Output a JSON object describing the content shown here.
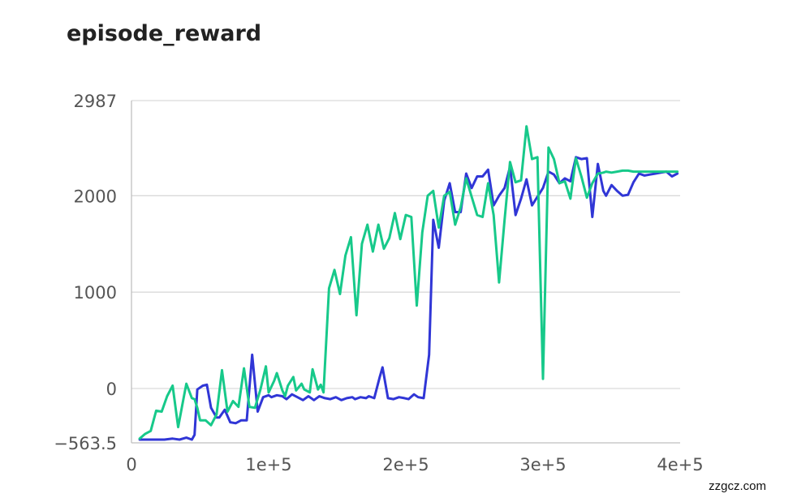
{
  "title": "episode_reward",
  "watermark": "zzgcz.com",
  "chart_data": {
    "type": "line",
    "xlabel": "",
    "ylabel": "",
    "xlim": [
      0,
      400000
    ],
    "ylim": [
      -563.5,
      2987
    ],
    "x_ticks": [
      0,
      100000,
      200000,
      300000,
      400000
    ],
    "x_tick_labels": [
      "0",
      "1e+5",
      "2e+5",
      "3e+5",
      "4e+5"
    ],
    "y_ticks": [
      -563.5,
      0,
      1000,
      2000,
      2987
    ],
    "y_tick_labels": [
      "−563.5",
      "0",
      "1000",
      "2000",
      "2987"
    ],
    "grid": "horizontal",
    "colors": {
      "blue": "#3036d6",
      "green": "#17c98a",
      "grid": "#d9d9d9",
      "axis": "#bfbfbf",
      "tick_text": "#555555"
    },
    "series": [
      {
        "color": "#3036d6",
        "x": [
          6000,
          12000,
          18000,
          24000,
          30000,
          35000,
          40000,
          44000,
          46000,
          48000,
          52000,
          55000,
          58000,
          62000,
          64000,
          68000,
          72000,
          76000,
          80000,
          84000,
          88000,
          92000,
          96000,
          100000,
          102000,
          106000,
          110000,
          113000,
          117000,
          121000,
          125000,
          129000,
          133000,
          137000,
          141000,
          145000,
          149000,
          153000,
          157000,
          161000,
          163000,
          167000,
          171000,
          173000,
          177000,
          181000,
          183000,
          187000,
          191000,
          195000,
          199000,
          202000,
          206000,
          209000,
          213000,
          217000,
          220000,
          224000,
          228000,
          232000,
          236000,
          240000,
          244000,
          248000,
          252000,
          256000,
          260000,
          264000,
          268000,
          272000,
          276000,
          280000,
          284000,
          288000,
          292000,
          296000,
          300000,
          304000,
          308000,
          312000,
          316000,
          320000,
          324000,
          328000,
          332000,
          336000,
          340000,
          344000,
          346000,
          350000,
          354000,
          358000,
          362000,
          366000,
          370000,
          374000,
          378000,
          382000,
          386000,
          390000,
          394000,
          398000
        ],
        "y": [
          -530,
          -530,
          -530,
          -530,
          -520,
          -530,
          -510,
          -530,
          -480,
          -10,
          30,
          40,
          -200,
          -300,
          -300,
          -220,
          -350,
          -360,
          -330,
          -330,
          350,
          -240,
          -90,
          -70,
          -90,
          -70,
          -80,
          -110,
          -60,
          -90,
          -120,
          -80,
          -120,
          -80,
          -100,
          -110,
          -90,
          -120,
          -100,
          -90,
          -110,
          -90,
          -100,
          -80,
          -100,
          120,
          220,
          -100,
          -110,
          -90,
          -100,
          -110,
          -60,
          -90,
          -100,
          350,
          1750,
          1460,
          1950,
          2130,
          1830,
          1830,
          2230,
          2080,
          2200,
          2200,
          2270,
          1900,
          2000,
          2080,
          2300,
          1800,
          1970,
          2170,
          1900,
          1990,
          2080,
          2250,
          2220,
          2130,
          2180,
          2150,
          2400,
          2380,
          2390,
          1780,
          2330,
          2050,
          2000,
          2110,
          2050,
          2000,
          2010,
          2140,
          2230,
          2210,
          2220,
          2230,
          2240,
          2250,
          2200,
          2230
        ]
      },
      {
        "color": "#17c98a",
        "x": [
          6000,
          10000,
          14000,
          18000,
          22000,
          26000,
          30000,
          34000,
          38000,
          40000,
          44000,
          46000,
          48000,
          50000,
          54000,
          58000,
          62000,
          66000,
          70000,
          74000,
          78000,
          82000,
          86000,
          90000,
          94000,
          98000,
          100000,
          104000,
          106000,
          110000,
          112000,
          114000,
          118000,
          120000,
          124000,
          126000,
          130000,
          132000,
          136000,
          138000,
          140000,
          144000,
          148000,
          152000,
          156000,
          160000,
          164000,
          168000,
          172000,
          176000,
          180000,
          184000,
          188000,
          192000,
          196000,
          200000,
          204000,
          208000,
          212000,
          216000,
          220000,
          224000,
          228000,
          232000,
          236000,
          240000,
          244000,
          248000,
          252000,
          256000,
          260000,
          264000,
          268000,
          272000,
          276000,
          280000,
          284000,
          288000,
          292000,
          296000,
          300000,
          304000,
          308000,
          312000,
          316000,
          320000,
          324000,
          328000,
          332000,
          336000,
          340000,
          344000,
          346000,
          350000,
          354000,
          358000,
          362000,
          366000,
          370000,
          374000,
          378000,
          382000,
          386000,
          390000,
          394000,
          398000
        ],
        "y": [
          -520,
          -470,
          -440,
          -230,
          -240,
          -80,
          30,
          -400,
          -100,
          50,
          -100,
          -110,
          -200,
          -330,
          -330,
          -380,
          -270,
          190,
          -240,
          -130,
          -190,
          210,
          -190,
          -200,
          -10,
          230,
          -40,
          80,
          160,
          -20,
          -80,
          30,
          120,
          -20,
          50,
          -10,
          -40,
          200,
          -10,
          40,
          -40,
          1040,
          1230,
          980,
          1380,
          1570,
          760,
          1500,
          1700,
          1420,
          1700,
          1450,
          1560,
          1820,
          1550,
          1800,
          1780,
          860,
          1620,
          2000,
          2050,
          1670,
          2000,
          2040,
          1700,
          1880,
          2180,
          1990,
          1800,
          1780,
          2130,
          1800,
          1100,
          1750,
          2350,
          2140,
          2160,
          2720,
          2380,
          2400,
          100,
          2500,
          2380,
          2130,
          2150,
          1970,
          2390,
          2200,
          1980,
          2130,
          2230,
          2240,
          2250,
          2240,
          2250,
          2260,
          2260,
          2250,
          2250,
          2250,
          2250,
          2250,
          2250,
          2250,
          2250,
          2250
        ]
      }
    ]
  }
}
